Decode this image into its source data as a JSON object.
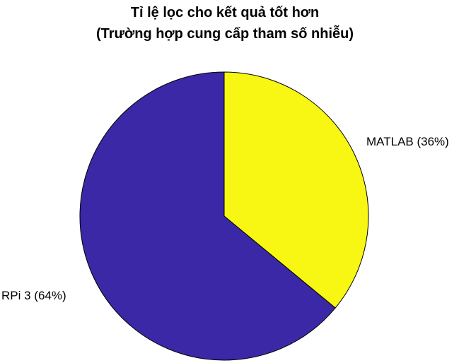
{
  "chart_data": {
    "type": "pie",
    "title": [
      "Tỉ lệ lọc cho kết quả tốt hơn",
      "(Trường hợp cung cấp tham số nhiễu)"
    ],
    "slices": [
      {
        "label": "MATLAB (36%)",
        "value": 36,
        "color": "#f7f713"
      },
      {
        "label": "RPi 3 (64%)",
        "value": 64,
        "color": "#3b28a6"
      }
    ],
    "start": "12 o'clock",
    "direction": "clockwise",
    "legend": "none"
  }
}
